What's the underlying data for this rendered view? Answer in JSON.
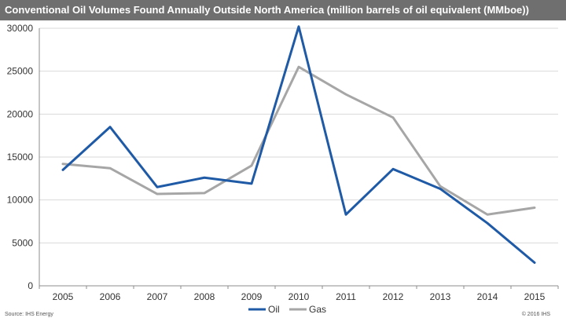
{
  "header": {
    "title": "Conventional Oil Volumes Found Annually Outside North America (million barrels of oil equivalent (MMboe))"
  },
  "footer": {
    "source": "Source: IHS Energy",
    "copyright": "© 2016 IHS"
  },
  "colors": {
    "oil": "#1f5aa6",
    "gas": "#a6a6a6",
    "grid": "#d9d9d9",
    "title_bg": "#6f6f6f"
  },
  "chart_data": {
    "type": "line",
    "title": "Conventional Oil Volumes Found Annually Outside North America (million barrels of oil equivalent (MMboe))",
    "xlabel": "",
    "ylabel": "",
    "categories": [
      "2005",
      "2006",
      "2007",
      "2008",
      "2009",
      "2010",
      "2011",
      "2012",
      "2013",
      "2014",
      "2015"
    ],
    "ylim": [
      0,
      30000
    ],
    "yticks": [
      0,
      5000,
      10000,
      15000,
      20000,
      25000,
      30000
    ],
    "grid": true,
    "legend": "bottom-center",
    "series": [
      {
        "name": "Oil",
        "color": "#1f5aa6",
        "values": [
          13500,
          18500,
          11500,
          12600,
          11900,
          30200,
          8300,
          13600,
          11300,
          7300,
          2700
        ]
      },
      {
        "name": "Gas",
        "color": "#a6a6a6",
        "values": [
          14200,
          13700,
          10700,
          10800,
          14000,
          25500,
          22300,
          19600,
          11600,
          8300,
          9100
        ]
      }
    ]
  }
}
